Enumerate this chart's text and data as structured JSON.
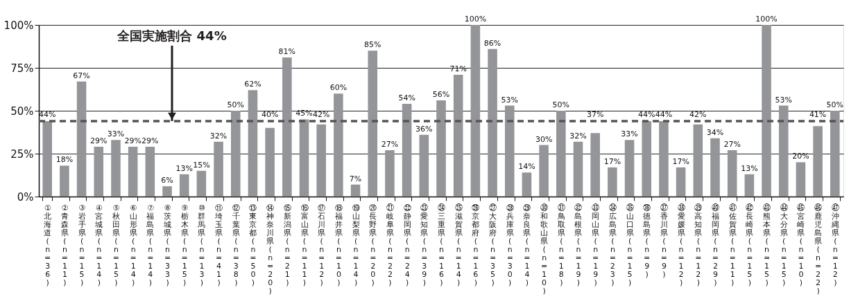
{
  "chart_data": {
    "type": "bar",
    "categories": [
      "①北海道(n=36)",
      "②青森県(n=11)",
      "③岩手県(n=15)",
      "④宮城県(n=14)",
      "⑤秋田県(n=15)",
      "⑥山形県(n=14)",
      "⑦福島県(n=14)",
      "⑧茨城県(n=33)",
      "⑨栃木県(n=15)",
      "⑩群馬県(n=13)",
      "⑪埼玉県(n=41)",
      "⑫千葉県(n=38)",
      "⑬東京都(n=50)",
      "⑭神奈川県(n=20)",
      "⑮新潟県(n=21)",
      "⑯富山県(n=11)",
      "⑰石川県(n=12)",
      "⑱福井県(n=10)",
      "⑲山梨県(n=14)",
      "⑳長野県(n=20)",
      "㉑岐阜県(n=22)",
      "㉒静岡県(n=24)",
      "㉓愛知県(n=39)",
      "㉔三重県(n=16)",
      "㉕滋賀県(n=14)",
      "㉖京都府(n=16)",
      "㉗大阪府(n=35)",
      "㉘兵庫県(n=30)",
      "㉙奈良県(n=14)",
      "㉚和歌山県(n=10)",
      "㉛鳥取県(n=18)",
      "㉜島根県(n=19)",
      "㉝岡山県(n=19)",
      "㉞広島県(n=23)",
      "㉟山口県(n=15)",
      "㊱徳島県(n=9)",
      "㊲香川県(n=9)",
      "㊳愛媛県(n=12)",
      "㊴高知県(n=12)",
      "㊵福岡県(n=29)",
      "㊶佐賀県(n=11)",
      "㊷長崎県(n=15)",
      "㊸熊本県(n=15)",
      "㊹大分県(n=15)",
      "㊺宮崎県(n=10)",
      "㊻鹿児島県(n=22)",
      "㊼沖縄県(n=12)"
    ],
    "values": [
      44,
      18,
      67,
      29,
      33,
      29,
      29,
      6,
      13,
      15,
      32,
      50,
      62,
      40,
      81,
      45,
      42,
      60,
      7,
      85,
      27,
      54,
      36,
      56,
      71,
      100,
      86,
      53,
      14,
      30,
      50,
      32,
      37,
      17,
      33,
      44,
      44,
      17,
      42,
      34,
      27,
      13,
      100,
      53,
      20,
      41,
      50
    ],
    "value_labels": [
      "44%",
      "18%",
      "67%",
      "29%",
      "33%",
      "29%",
      "29%",
      "6%",
      "13%",
      "15%",
      "32%",
      "50%",
      "62%",
      "40%",
      "81%",
      "45%",
      "42%",
      "60%",
      "7%",
      "85%",
      "27%",
      "54%",
      "36%",
      "56%",
      "71%",
      "100%",
      "86%",
      "53%",
      "14%",
      "30%",
      "50%",
      "32%",
      "37%",
      "17%",
      "33%",
      "44%",
      "44%",
      "17%",
      "42%",
      "34%",
      "27%",
      "13%",
      "100%",
      "53%",
      "20%",
      "41%",
      "50%"
    ],
    "color": "#939598",
    "ylim": [
      0,
      100
    ],
    "yticks": [
      {
        "value": 0,
        "label": "0%"
      },
      {
        "value": 25,
        "label": "25%"
      },
      {
        "value": 50,
        "label": "50%"
      },
      {
        "value": 75,
        "label": "75%"
      },
      {
        "value": 100,
        "label": "100%"
      }
    ],
    "grid": "y",
    "ref_lines": [
      {
        "axis": "y",
        "value": 44,
        "label": "全国実施割合 44%",
        "color": "#555555",
        "line_style": "dashed"
      }
    ]
  }
}
